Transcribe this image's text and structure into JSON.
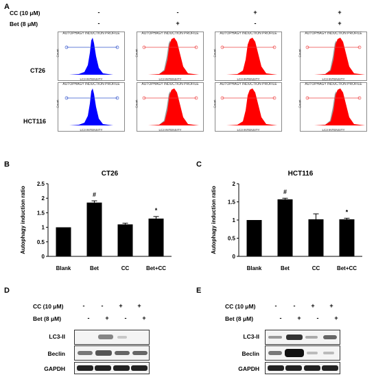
{
  "panels": {
    "A": {
      "letter": "A"
    },
    "B": {
      "letter": "B"
    },
    "C": {
      "letter": "C"
    },
    "D": {
      "letter": "D"
    },
    "E": {
      "letter": "E"
    }
  },
  "treatments": {
    "cc_label": "CC (10 μM)",
    "bet_label": "Bet (8 μM)",
    "cc_signs": [
      "-",
      "-",
      "+",
      "+"
    ],
    "bet_signs": [
      "-",
      "+",
      "-",
      "+"
    ]
  },
  "flow": {
    "title": "AUTOPHAGY INDUCTION PROFILE",
    "xlabel": "LC3 INTENSITY",
    "ylabel": "Count",
    "rows": [
      "CT26",
      "HCT116"
    ],
    "colors": {
      "blank": "#0000ff",
      "treated": "#ff0000",
      "control_overlay": "#999999",
      "marker_blank": "#3355cc",
      "marker_treated": "#ee4444"
    }
  },
  "chart_data": [
    {
      "type": "bar",
      "title": "CT26",
      "ylabel": "Autophagy induction ratio",
      "categories": [
        "Blank",
        "Bet",
        "CC",
        "Bet+CC"
      ],
      "values": [
        1.0,
        1.85,
        1.1,
        1.3
      ],
      "errors": [
        0,
        0.06,
        0.04,
        0.07
      ],
      "annotations": [
        "",
        "#",
        "",
        "*"
      ],
      "ylim": [
        0,
        2.5
      ],
      "yticks": [
        "0",
        "0.5",
        "1",
        "1.5",
        "2",
        "2.5"
      ],
      "color": "#000000"
    },
    {
      "type": "bar",
      "title": "HCT116",
      "ylabel": "Autophagy induction ratio",
      "categories": [
        "Blank",
        "Bet",
        "CC",
        "Bet+CC"
      ],
      "values": [
        1.0,
        1.57,
        1.02,
        1.02
      ],
      "errors": [
        0,
        0.03,
        0.15,
        0.03
      ],
      "annotations": [
        "",
        "#",
        "",
        "*"
      ],
      "ylim": [
        0,
        2
      ],
      "yticks": [
        "0",
        "0.5",
        "1",
        "1.5",
        "2"
      ],
      "color": "#000000"
    }
  ],
  "western": {
    "bands": [
      "LC3-II",
      "Beclin",
      "GAPDH"
    ]
  }
}
